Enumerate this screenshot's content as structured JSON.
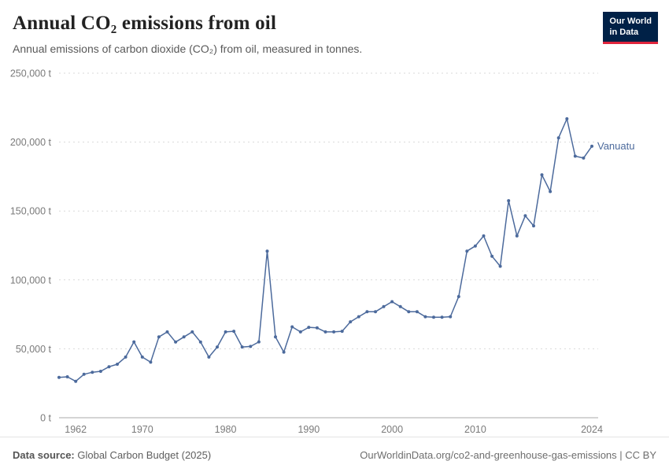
{
  "header": {
    "title": "Annual CO₂ emissions from oil",
    "subtitle": "Annual emissions of carbon dioxide (CO₂) from oil, measured in tonnes.",
    "logo": {
      "line1": "Our World",
      "line2": "in Data"
    }
  },
  "chart_data": {
    "type": "line",
    "title": "Annual CO₂ emissions from oil",
    "xlabel": "",
    "ylabel": "tonnes",
    "ylim": [
      0,
      250000
    ],
    "ytick_step": 50000,
    "ytick_labels": [
      "0 t",
      "50,000 t",
      "100,000 t",
      "150,000 t",
      "200,000 t",
      "250,000 t"
    ],
    "xticks": [
      1962,
      1970,
      1980,
      1990,
      2000,
      2010,
      2024
    ],
    "x_range": [
      1960,
      2024
    ],
    "grid": true,
    "legend_position": "end-of-line",
    "series": [
      {
        "name": "Vanuatu",
        "color": "#4c6a9c",
        "x_start": 1960,
        "values": [
          29300,
          29700,
          26400,
          31500,
          33000,
          33700,
          37000,
          38800,
          44000,
          55000,
          44000,
          40300,
          58600,
          62300,
          54900,
          58600,
          62300,
          54900,
          44000,
          51300,
          62300,
          62700,
          51300,
          51700,
          55000,
          120900,
          58600,
          47600,
          65900,
          62300,
          65600,
          65200,
          62300,
          62300,
          62700,
          69600,
          73300,
          76900,
          76900,
          80600,
          84200,
          80600,
          76900,
          76900,
          73300,
          72900,
          72900,
          73300,
          87900,
          120900,
          124600,
          131900,
          117200,
          109900,
          157500,
          131900,
          146500,
          139200,
          176200,
          164100,
          203100,
          216900,
          189800,
          188400,
          197000
        ]
      }
    ]
  },
  "footer": {
    "source_label": "Data source:",
    "source_text": " Global Carbon Budget (2025)",
    "credit": "OurWorldinData.org/co2-and-greenhouse-gas-emissions | CC BY"
  },
  "colors": {
    "line": "#4c6a9c",
    "logo_bg": "#002147",
    "logo_accent": "#e0243c",
    "grid": "#d9d9d9",
    "axis": "#a8a8a8"
  }
}
